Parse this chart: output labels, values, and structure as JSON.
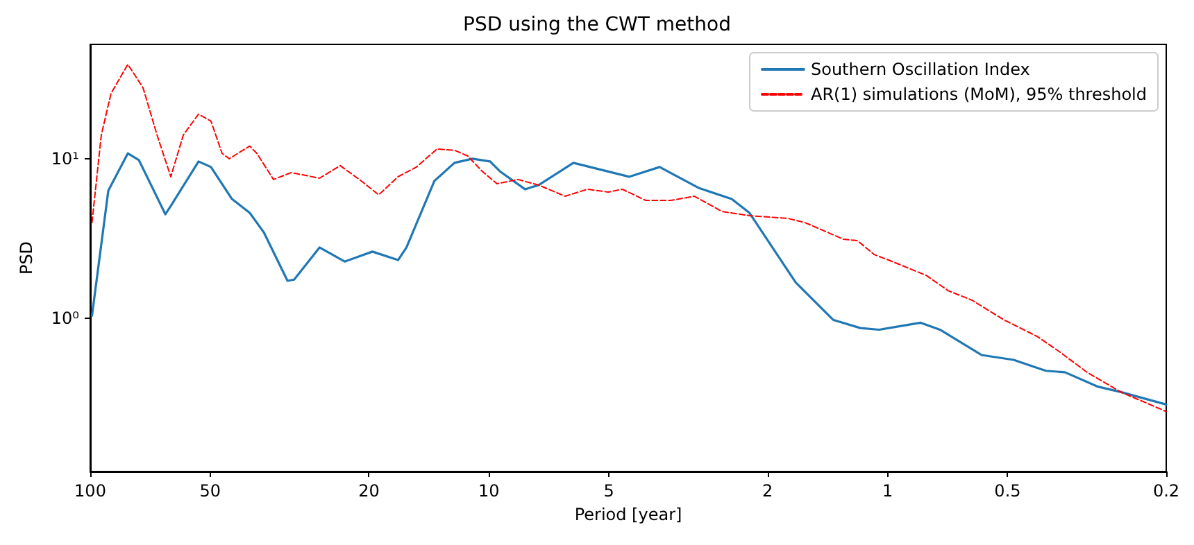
{
  "chart_data": {
    "type": "line",
    "title": "PSD using the CWT method",
    "xlabel": "Period [year]",
    "ylabel": "PSD",
    "log": "xy",
    "grid": false,
    "legend": "top right",
    "marker": "none",
    "xlim": [
      100,
      0.2
    ],
    "xticks": [
      100,
      50,
      20,
      10,
      5,
      2,
      1,
      0.5,
      0.2
    ],
    "ylim": [
      0.11,
      52
    ],
    "yticks": [
      {
        "value": 1,
        "label": "10⁰"
      },
      {
        "value": 10,
        "label": "10¹"
      }
    ],
    "series": [
      {
        "name": "Southern Oscillation Index",
        "color": "#1f77b4",
        "line_style": "solid",
        "x": [
          99,
          90.1,
          80.5,
          75.5,
          64.8,
          62.8,
          53.5,
          49.8,
          44.1,
          39.8,
          36.7,
          32.0,
          30.8,
          26.6,
          23.0,
          19.6,
          16.9,
          16.1,
          13.7,
          12.2,
          11.0,
          9.93,
          9.39,
          8.12,
          7.5,
          6.14,
          4.45,
          3.73,
          2.98,
          2.46,
          2.22,
          1.7,
          1.37,
          1.17,
          1.05,
          0.826,
          0.739,
          0.581,
          0.483,
          0.401,
          0.359,
          0.298,
          0.26,
          0.2
        ],
        "values": [
          1.04,
          6.31,
          10.8,
          9.8,
          4.49,
          5.06,
          9.61,
          8.87,
          5.59,
          4.58,
          3.46,
          1.72,
          1.75,
          2.78,
          2.27,
          2.62,
          2.32,
          2.78,
          7.26,
          9.42,
          10,
          9.61,
          8.35,
          6.44,
          6.84,
          9.42,
          7.71,
          8.87,
          6.57,
          5.59,
          4.58,
          1.68,
          0.98,
          0.87,
          0.85,
          0.94,
          0.85,
          0.59,
          0.55,
          0.47,
          0.46,
          0.375,
          0.346,
          0.289
        ]
      },
      {
        "name": "AR(1) simulations (MoM), 95% threshold",
        "color": "#ff0000",
        "line_style": "dashed",
        "x": [
          99,
          93.8,
          88.7,
          80.5,
          73.7,
          68.0,
          62.8,
          58.4,
          53.5,
          49.8,
          46.7,
          44.8,
          39.8,
          38.2,
          34.7,
          31.3,
          26.6,
          23.6,
          20.9,
          18.9,
          16.9,
          15.2,
          13.5,
          12.2,
          11.3,
          10.4,
          9.54,
          8.46,
          7.5,
          6.44,
          5.66,
          5.02,
          4.63,
          4.04,
          3.5,
          3.05,
          2.6,
          2.22,
          1.78,
          1.61,
          1.29,
          1.19,
          1.08,
          0.994,
          0.8,
          0.704,
          0.614,
          0.511,
          0.421,
          0.371,
          0.316,
          0.26,
          0.2
        ],
        "values": [
          3.98,
          14.1,
          25.6,
          39.0,
          27.8,
          14.1,
          7.71,
          14.1,
          19.0,
          17.2,
          10.8,
          10.0,
          12.0,
          10.8,
          7.41,
          8.19,
          7.55,
          9.05,
          7.26,
          5.94,
          7.71,
          8.87,
          11.5,
          11.3,
          10.4,
          8.35,
          6.97,
          7.41,
          6.84,
          5.82,
          6.44,
          6.18,
          6.44,
          5.48,
          5.48,
          5.82,
          4.67,
          4.4,
          4.23,
          3.98,
          3.13,
          3.07,
          2.51,
          2.32,
          1.86,
          1.49,
          1.3,
          0.98,
          0.77,
          0.62,
          0.46,
          0.346,
          0.261
        ]
      }
    ]
  }
}
